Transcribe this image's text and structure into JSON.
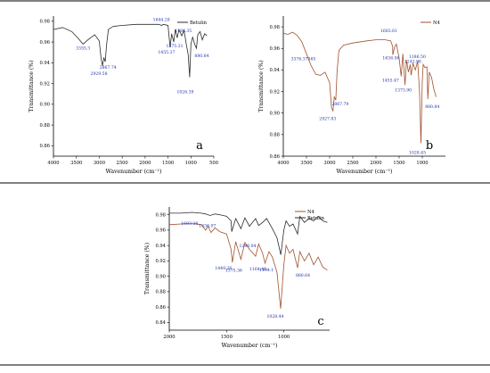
{
  "chart_data": [
    {
      "type": "line",
      "panel": "a",
      "xlabel": "Wavenumber (cm⁻¹)",
      "ylabel": "Transmittance (%)",
      "xlim": [
        4000,
        500
      ],
      "ylim": [
        0.85,
        0.985
      ],
      "x_ticks": [
        "4000",
        "3500",
        "3000",
        "2500",
        "2000",
        "1500",
        "1000",
        "500"
      ],
      "y_ticks": [
        "0.86",
        "0.88",
        "0.90",
        "0.92",
        "0.94",
        "0.96",
        "0.98"
      ],
      "legend_position": "top-right",
      "series": [
        {
          "name": "Betulin",
          "color": "#2b2b2b",
          "x": [
            4000,
            3800,
            3600,
            3450,
            3355,
            3250,
            3100,
            3000,
            2960,
            2930,
            2900,
            2870,
            2840,
            2800,
            2700,
            2500,
            2200,
            2000,
            1800,
            1700,
            1644,
            1600,
            1500,
            1455,
            1420,
            1375,
            1340,
            1300,
            1260,
            1200,
            1150,
            1100,
            1060,
            1026,
            1000,
            960,
            920,
            880,
            850,
            800,
            750,
            700,
            650
          ],
          "y": [
            0.972,
            0.974,
            0.97,
            0.963,
            0.958,
            0.962,
            0.967,
            0.961,
            0.944,
            0.937,
            0.945,
            0.941,
            0.958,
            0.972,
            0.975,
            0.976,
            0.977,
            0.977,
            0.977,
            0.977,
            0.976,
            0.977,
            0.976,
            0.955,
            0.968,
            0.96,
            0.972,
            0.964,
            0.972,
            0.966,
            0.971,
            0.958,
            0.948,
            0.926,
            0.958,
            0.965,
            0.958,
            0.954,
            0.967,
            0.97,
            0.962,
            0.968,
            0.966
          ]
        }
      ],
      "annotations": [
        {
          "text": "3355.3",
          "x": 3355
        },
        {
          "text": "2929.58",
          "x": 2930
        },
        {
          "text": "2867.74",
          "x": 2868
        },
        {
          "text": "1644.28",
          "x": 1644
        },
        {
          "text": "1455.37",
          "x": 1455
        },
        {
          "text": "1375.31",
          "x": 1375
        },
        {
          "text": "1186.35",
          "x": 1186
        },
        {
          "text": "1026.39",
          "x": 1026
        },
        {
          "text": "880.64",
          "x": 880
        }
      ]
    },
    {
      "type": "line",
      "panel": "b",
      "xlabel": "Wavenumber (cm⁻¹)",
      "ylabel": "Transmittance (%)",
      "xlim": [
        4000,
        500
      ],
      "ylim": [
        0.86,
        0.99
      ],
      "x_ticks": [
        "4000",
        "3500",
        "3000",
        "2500",
        "2000",
        "1500",
        "1000"
      ],
      "y_ticks": [
        "0.86",
        "0.88",
        "0.90",
        "0.92",
        "0.94",
        "0.96",
        "0.98"
      ],
      "legend_position": "top-right",
      "series": [
        {
          "name": "N4",
          "color": "#a0522d",
          "x": [
            4000,
            3900,
            3800,
            3700,
            3600,
            3500,
            3400,
            3300,
            3200,
            3100,
            3000,
            2960,
            2927,
            2900,
            2867,
            2840,
            2800,
            2700,
            2500,
            2200,
            2000,
            1800,
            1683,
            1640,
            1636,
            1600,
            1560,
            1500,
            1455,
            1420,
            1373,
            1340,
            1300,
            1260,
            1243,
            1200,
            1150,
            1100,
            1060,
            1028,
            1000,
            980,
            940,
            900,
            880,
            850,
            800,
            750,
            700
          ],
          "y": [
            0.974,
            0.973,
            0.975,
            0.972,
            0.966,
            0.955,
            0.944,
            0.936,
            0.935,
            0.938,
            0.928,
            0.905,
            0.902,
            0.915,
            0.912,
            0.938,
            0.958,
            0.963,
            0.965,
            0.967,
            0.968,
            0.968,
            0.967,
            0.962,
            0.954,
            0.961,
            0.964,
            0.951,
            0.934,
            0.955,
            0.926,
            0.949,
            0.938,
            0.945,
            0.935,
            0.946,
            0.94,
            0.948,
            0.92,
            0.872,
            0.93,
            0.945,
            0.942,
            0.943,
            0.913,
            0.938,
            0.933,
            0.922,
            0.915
          ]
        }
      ],
      "annotations": [
        {
          "text": "3376.37365",
          "x": 3376
        },
        {
          "text": "2927.83",
          "x": 2927
        },
        {
          "text": "2867.79",
          "x": 2868
        },
        {
          "text": "1683.61",
          "x": 1683
        },
        {
          "text": "1636.06",
          "x": 1636
        },
        {
          "text": "1455.47",
          "x": 1455
        },
        {
          "text": "1373.90",
          "x": 1373
        },
        {
          "text": "1243.98",
          "x": 1243
        },
        {
          "text": "1186.50",
          "x": 1186
        },
        {
          "text": "1028.45",
          "x": 1028
        },
        {
          "text": "880.84",
          "x": 880
        }
      ]
    },
    {
      "type": "line",
      "panel": "c",
      "xlabel": "Wavenumber (cm⁻¹)",
      "ylabel": "Transmittance (%)",
      "xlim": [
        2000,
        600
      ],
      "ylim": [
        0.83,
        0.99
      ],
      "x_ticks": [
        "2000",
        "1500",
        "1000"
      ],
      "y_ticks": [
        "0.84",
        "0.86",
        "0.88",
        "0.90",
        "0.92",
        "0.94",
        "0.96",
        "0.98"
      ],
      "legend_position": "top-right",
      "series": [
        {
          "name": "N4",
          "color": "#a0522d",
          "x": [
            2000,
            1900,
            1800,
            1720,
            1683,
            1660,
            1636,
            1600,
            1560,
            1500,
            1460,
            1449,
            1420,
            1375,
            1340,
            1300,
            1246,
            1220,
            1186,
            1164,
            1130,
            1100,
            1060,
            1028,
            1000,
            980,
            950,
            920,
            880,
            860,
            820,
            780,
            740,
            700,
            660,
            620
          ],
          "y": [
            0.967,
            0.968,
            0.969,
            0.967,
            0.96,
            0.965,
            0.957,
            0.963,
            0.958,
            0.955,
            0.935,
            0.918,
            0.945,
            0.922,
            0.944,
            0.935,
            0.926,
            0.942,
            0.93,
            0.917,
            0.932,
            0.925,
            0.905,
            0.858,
            0.915,
            0.94,
            0.93,
            0.935,
            0.911,
            0.932,
            0.92,
            0.93,
            0.915,
            0.925,
            0.912,
            0.908
          ]
        },
        {
          "name": "Betulin",
          "color": "#2b2b2b",
          "x": [
            2000,
            1900,
            1800,
            1720,
            1683,
            1644,
            1600,
            1560,
            1500,
            1460,
            1455,
            1420,
            1375,
            1340,
            1300,
            1246,
            1220,
            1186,
            1150,
            1100,
            1060,
            1026,
            1000,
            980,
            950,
            920,
            880,
            860,
            820,
            780,
            740,
            700,
            660,
            620
          ],
          "y": [
            0.982,
            0.982,
            0.983,
            0.982,
            0.981,
            0.979,
            0.981,
            0.98,
            0.978,
            0.972,
            0.958,
            0.975,
            0.962,
            0.976,
            0.965,
            0.975,
            0.966,
            0.97,
            0.975,
            0.962,
            0.95,
            0.928,
            0.96,
            0.972,
            0.965,
            0.968,
            0.955,
            0.978,
            0.97,
            0.975,
            0.972,
            0.978,
            0.972,
            0.97
          ]
        }
      ],
      "annotations": [
        {
          "text": "1683.28",
          "x": 1683
        },
        {
          "text": "1636.07",
          "x": 1636
        },
        {
          "text": "1449.26",
          "x": 1449
        },
        {
          "text": "1375.36",
          "x": 1375
        },
        {
          "text": "1246.04",
          "x": 1246
        },
        {
          "text": "1164.46",
          "x": 1164
        },
        {
          "text": "1104.1",
          "x": 1104
        },
        {
          "text": "1028.44",
          "x": 1028
        },
        {
          "text": "880.64",
          "x": 880
        }
      ]
    }
  ]
}
